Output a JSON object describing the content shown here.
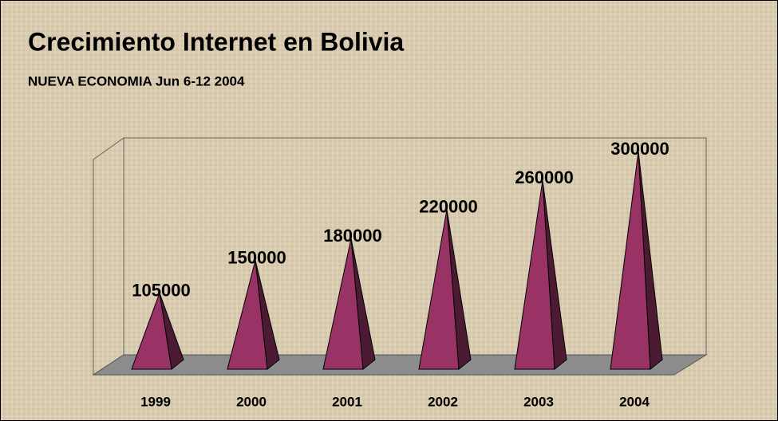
{
  "chart_data": {
    "type": "bar3d-pyramid",
    "title": "Crecimiento Internet en Bolivia",
    "subtitle": "NUEVA ECONOMIA Jun 6-12 2004",
    "categories": [
      "1999",
      "2000",
      "2001",
      "2002",
      "2003",
      "2004"
    ],
    "values": [
      105000,
      150000,
      180000,
      220000,
      260000,
      300000
    ],
    "color": "#993366",
    "ylim": [
      0,
      300000
    ]
  }
}
